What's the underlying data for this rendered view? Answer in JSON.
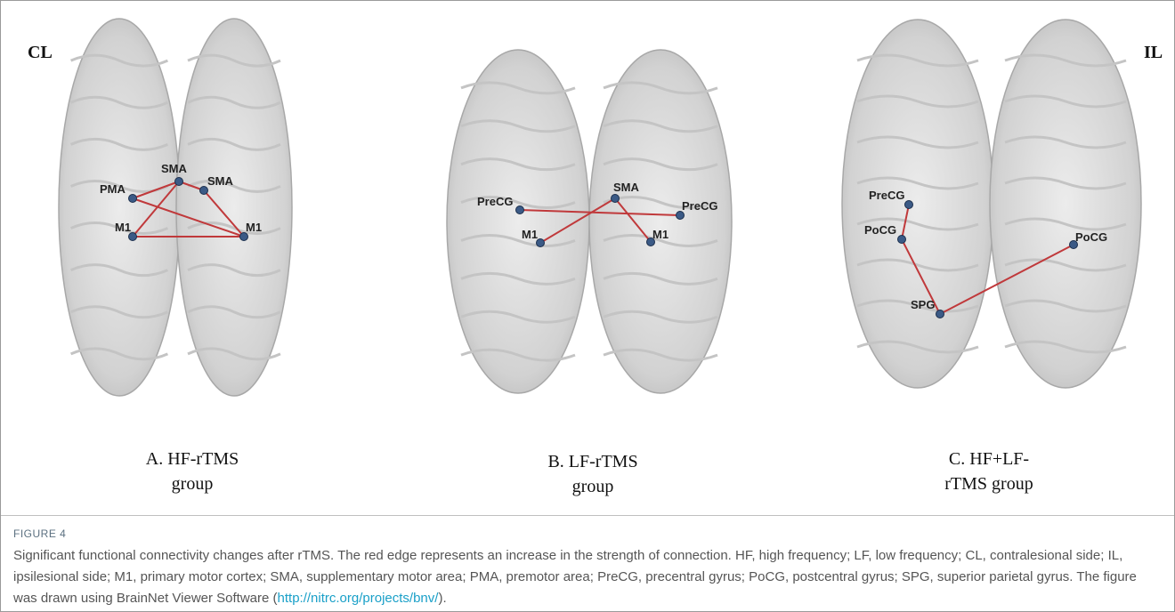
{
  "figure": {
    "side_labels": [
      "CL",
      "IL"
    ],
    "panels": [
      {
        "nodes": [
          "PMA",
          "SMA",
          "SMA",
          "M1",
          "M1"
        ],
        "caption_lines": [
          "A. HF-rTMS",
          "group"
        ]
      },
      {
        "nodes": [
          "PreCG",
          "SMA",
          "PreCG",
          "M1",
          "M1"
        ],
        "caption_lines": [
          "B. LF-rTMS",
          "group"
        ]
      },
      {
        "nodes": [
          "PreCG",
          "PoCG",
          "SPG",
          "PoCG"
        ],
        "caption_lines": [
          "C. HF+LF-",
          "rTMS group"
        ]
      }
    ],
    "label": "FIGURE 4",
    "caption": "Significant functional connectivity changes after rTMS. The red edge represents an increase in the strength of connection. HF, high frequency; LF, low frequency; CL, contralesional side; IL, ipsilesional side; M1, primary motor cortex; SMA, supplementary motor area; PMA, premotor area; PreCG, precentral gyrus; PoCG, postcentral gyrus; SPG, superior parietal gyrus. The figure was drawn using BrainNet Viewer Software (",
    "link": "http://nitrc.org/projects/bnv/",
    "caption_end": ")."
  }
}
